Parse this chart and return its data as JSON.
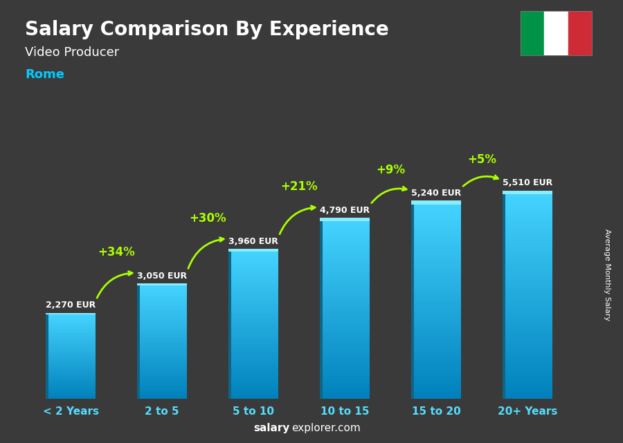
{
  "title": "Salary Comparison By Experience",
  "subtitle": "Video Producer",
  "city": "Rome",
  "categories": [
    "< 2 Years",
    "2 to 5",
    "5 to 10",
    "10 to 15",
    "15 to 20",
    "20+ Years"
  ],
  "values": [
    2270,
    3050,
    3960,
    4790,
    5240,
    5510
  ],
  "labels": [
    "2,270 EUR",
    "3,050 EUR",
    "3,960 EUR",
    "4,790 EUR",
    "5,240 EUR",
    "5,510 EUR"
  ],
  "pct_changes": [
    "+34%",
    "+30%",
    "+21%",
    "+9%",
    "+5%"
  ],
  "bar_color_main": "#29b6d8",
  "bar_color_light": "#55d4f0",
  "bar_color_dark": "#1a88aa",
  "bar_color_side": "#0d6688",
  "bg_color": "#3a3a3a",
  "title_color": "#ffffff",
  "subtitle_color": "#ffffff",
  "city_color": "#00ccff",
  "label_color": "#ffffff",
  "pct_color": "#aaff00",
  "watermark_bold": "salary",
  "watermark_normal": "explorer.com",
  "ylabel": "Average Monthly Salary",
  "flag_colors": [
    "#009246",
    "#ffffff",
    "#ce2b37"
  ],
  "ylim_max": 6800,
  "bar_width": 0.55
}
